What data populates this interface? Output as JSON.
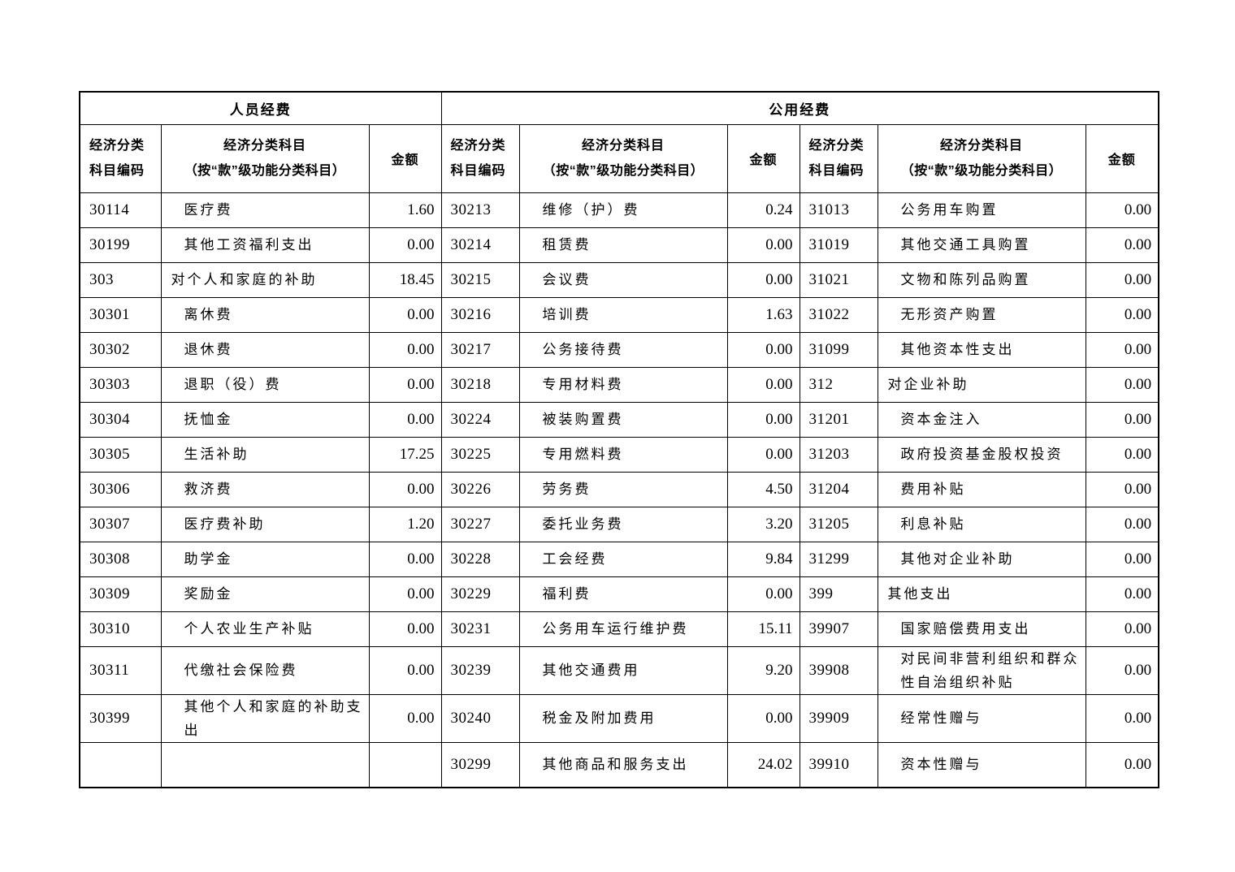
{
  "colors": {
    "background": "#ffffff",
    "border": "#000000",
    "text": "#000000"
  },
  "table": {
    "section_headers": {
      "personnel": "人员经费",
      "public": "公用经费"
    },
    "column_headers": {
      "code": "经济分类科目编码",
      "subject_line1": "经济分类科目",
      "subject_line2": "（按“款”级功能分类科目）",
      "amount": "金额"
    },
    "rows": [
      {
        "left": {
          "code": "30114",
          "subject": "医疗费",
          "amount": "1.60",
          "level": 2
        },
        "mid": {
          "code": "30213",
          "subject": "维修（护）费",
          "amount": "0.24",
          "level": 2
        },
        "right": {
          "code": "31013",
          "subject": "公务用车购置",
          "amount": "0.00",
          "level": 2
        }
      },
      {
        "left": {
          "code": "30199",
          "subject": "其他工资福利支出",
          "amount": "0.00",
          "level": 2
        },
        "mid": {
          "code": "30214",
          "subject": "租赁费",
          "amount": "0.00",
          "level": 2
        },
        "right": {
          "code": "31019",
          "subject": "其他交通工具购置",
          "amount": "0.00",
          "level": 2
        }
      },
      {
        "left": {
          "code": "303",
          "subject": "对个人和家庭的补助",
          "amount": "18.45",
          "level": 1
        },
        "mid": {
          "code": "30215",
          "subject": "会议费",
          "amount": "0.00",
          "level": 2
        },
        "right": {
          "code": "31021",
          "subject": "文物和陈列品购置",
          "amount": "0.00",
          "level": 2
        }
      },
      {
        "left": {
          "code": "30301",
          "subject": "离休费",
          "amount": "0.00",
          "level": 2
        },
        "mid": {
          "code": "30216",
          "subject": "培训费",
          "amount": "1.63",
          "level": 2
        },
        "right": {
          "code": "31022",
          "subject": "无形资产购置",
          "amount": "0.00",
          "level": 2
        }
      },
      {
        "left": {
          "code": "30302",
          "subject": "退休费",
          "amount": "0.00",
          "level": 2
        },
        "mid": {
          "code": "30217",
          "subject": "公务接待费",
          "amount": "0.00",
          "level": 2
        },
        "right": {
          "code": "31099",
          "subject": "其他资本性支出",
          "amount": "0.00",
          "level": 2
        }
      },
      {
        "left": {
          "code": "30303",
          "subject": "退职（役）费",
          "amount": "0.00",
          "level": 2
        },
        "mid": {
          "code": "30218",
          "subject": "专用材料费",
          "amount": "0.00",
          "level": 2
        },
        "right": {
          "code": "312",
          "subject": "对企业补助",
          "amount": "0.00",
          "level": 1
        }
      },
      {
        "left": {
          "code": "30304",
          "subject": "抚恤金",
          "amount": "0.00",
          "level": 2
        },
        "mid": {
          "code": "30224",
          "subject": "被装购置费",
          "amount": "0.00",
          "level": 2
        },
        "right": {
          "code": "31201",
          "subject": "资本金注入",
          "amount": "0.00",
          "level": 2
        }
      },
      {
        "left": {
          "code": "30305",
          "subject": "生活补助",
          "amount": "17.25",
          "level": 2
        },
        "mid": {
          "code": "30225",
          "subject": "专用燃料费",
          "amount": "0.00",
          "level": 2
        },
        "right": {
          "code": "31203",
          "subject": "政府投资基金股权投资",
          "amount": "0.00",
          "level": 2
        }
      },
      {
        "left": {
          "code": "30306",
          "subject": "救济费",
          "amount": "0.00",
          "level": 2
        },
        "mid": {
          "code": "30226",
          "subject": "劳务费",
          "amount": "4.50",
          "level": 2
        },
        "right": {
          "code": "31204",
          "subject": "费用补贴",
          "amount": "0.00",
          "level": 2
        }
      },
      {
        "left": {
          "code": "30307",
          "subject": "医疗费补助",
          "amount": "1.20",
          "level": 2
        },
        "mid": {
          "code": "30227",
          "subject": "委托业务费",
          "amount": "3.20",
          "level": 2
        },
        "right": {
          "code": "31205",
          "subject": "利息补贴",
          "amount": "0.00",
          "level": 2
        }
      },
      {
        "left": {
          "code": "30308",
          "subject": "助学金",
          "amount": "0.00",
          "level": 2
        },
        "mid": {
          "code": "30228",
          "subject": "工会经费",
          "amount": "9.84",
          "level": 2
        },
        "right": {
          "code": "31299",
          "subject": "其他对企业补助",
          "amount": "0.00",
          "level": 2
        }
      },
      {
        "left": {
          "code": "30309",
          "subject": "奖励金",
          "amount": "0.00",
          "level": 2
        },
        "mid": {
          "code": "30229",
          "subject": "福利费",
          "amount": "0.00",
          "level": 2
        },
        "right": {
          "code": "399",
          "subject": "其他支出",
          "amount": "0.00",
          "level": 1
        }
      },
      {
        "left": {
          "code": "30310",
          "subject": "个人农业生产补贴",
          "amount": "0.00",
          "level": 2
        },
        "mid": {
          "code": "30231",
          "subject": "公务用车运行维护费",
          "amount": "15.11",
          "level": 2
        },
        "right": {
          "code": "39907",
          "subject": "国家赔偿费用支出",
          "amount": "0.00",
          "level": 2
        }
      },
      {
        "left": {
          "code": "30311",
          "subject": "代缴社会保险费",
          "amount": "0.00",
          "level": 2
        },
        "mid": {
          "code": "30239",
          "subject": "其他交通费用",
          "amount": "9.20",
          "level": 2
        },
        "right": {
          "code": "39908",
          "subject": "对民间非营利组织和群众性自治组织补贴",
          "amount": "0.00",
          "level": 2
        }
      },
      {
        "left": {
          "code": "30399",
          "subject": "其他个人和家庭的补助支出",
          "amount": "0.00",
          "level": 2
        },
        "mid": {
          "code": "30240",
          "subject": "税金及附加费用",
          "amount": "0.00",
          "level": 2
        },
        "right": {
          "code": "39909",
          "subject": "经常性赠与",
          "amount": "0.00",
          "level": 2
        }
      },
      {
        "left": {
          "code": "",
          "subject": "",
          "amount": "",
          "level": 2
        },
        "mid": {
          "code": "30299",
          "subject": "其他商品和服务支出",
          "amount": "24.02",
          "level": 2
        },
        "right": {
          "code": "39910",
          "subject": "资本性赠与",
          "amount": "0.00",
          "level": 2
        }
      }
    ]
  }
}
